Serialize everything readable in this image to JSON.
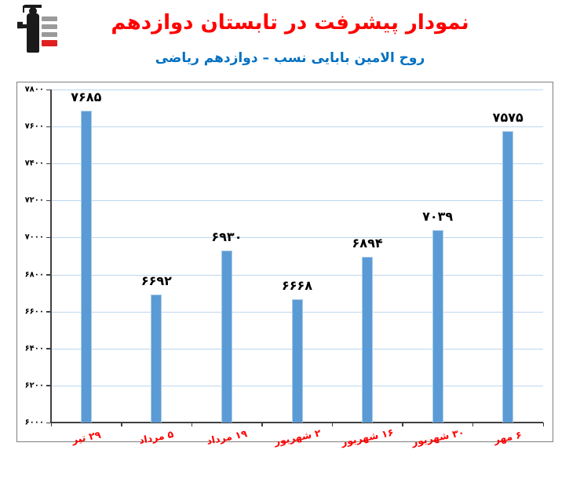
{
  "header": {
    "title": "نمودار پیشرفت در تابستان دوازدهم",
    "subtitle": "روح الامین بابایی نسب – دوازدهم ریاضی",
    "title_color": "#FF0000",
    "subtitle_color": "#0070C0",
    "logo": "kanoon-education-logo"
  },
  "chart_data": {
    "type": "bar",
    "title": "نمودار پیشرفت در تابستان دوازدهم",
    "subtitle": "روح الامین بابایی نسب – دوازدهم ریاضی",
    "categories": [
      "۲۹ تیر",
      "۵ مرداد",
      "۱۹ مرداد",
      "۲ شهریور",
      "۱۶ شهریور",
      "۳۰ شهریور",
      "۶ مهر"
    ],
    "values": [
      7685,
      6692,
      6930,
      6668,
      6894,
      7039,
      7575
    ],
    "value_labels": [
      "۷۶۸۵",
      "۶۶۹۲",
      "۶۹۳۰",
      "۶۶۶۸",
      "۶۸۹۴",
      "۷۰۳۹",
      "۷۵۷۵"
    ],
    "y_ticks": [
      6000,
      6200,
      6400,
      6600,
      6800,
      7000,
      7200,
      7400,
      7600,
      7800
    ],
    "y_tick_labels": [
      "۶۰۰۰",
      "۶۲۰۰",
      "۶۴۰۰",
      "۶۶۰۰",
      "۶۸۰۰",
      "۷۰۰۰",
      "۷۲۰۰",
      "۷۴۰۰",
      "۷۶۰۰",
      "۷۸۰۰"
    ],
    "ylim": [
      6000,
      7800
    ],
    "xlabel": "",
    "ylabel": "",
    "grid": true,
    "legend": "none",
    "colors": {
      "bar_fill": "#5B9BD5",
      "bar_border": "#A9CCE8",
      "gridline": "#BDD7EE",
      "axis": "#404040",
      "x_label": "#FF0000",
      "value_label": "#000000",
      "chart_border": "#7F7F7F",
      "background": "#FFFFFF"
    }
  }
}
